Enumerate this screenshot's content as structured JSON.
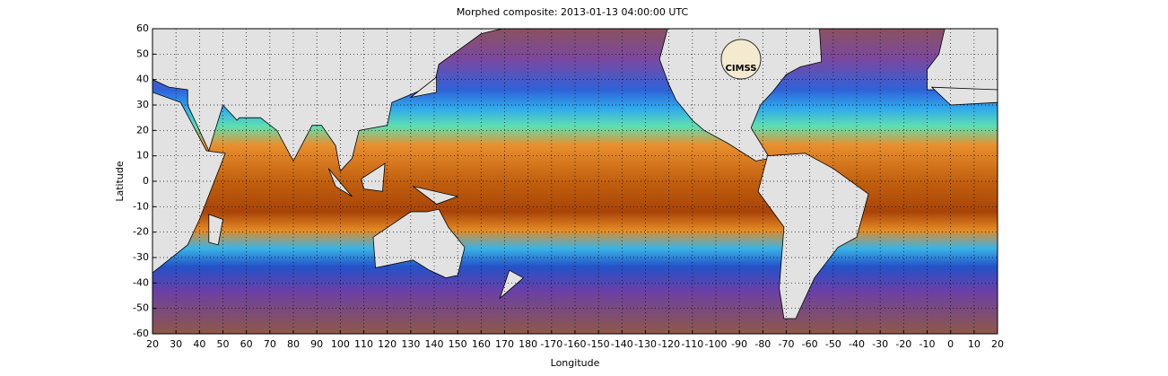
{
  "chart_data": {
    "type": "map",
    "title": "Morphed composite: 2013-01-13 04:00:00 UTC",
    "x_label": "Longitude",
    "y_label": "Latitude",
    "logo": "CIMSS",
    "xlim": [
      20,
      380
    ],
    "ylim": [
      -60,
      60
    ],
    "xticks": [
      20,
      30,
      40,
      50,
      60,
      70,
      80,
      90,
      100,
      110,
      120,
      130,
      140,
      150,
      160,
      170,
      180,
      {
        "value": 190,
        "label": "-170"
      },
      {
        "value": 200,
        "label": "-160"
      },
      {
        "value": 210,
        "label": "-150"
      },
      {
        "value": 220,
        "label": "-140"
      },
      {
        "value": 230,
        "label": "-130"
      },
      {
        "value": 240,
        "label": "-120"
      },
      {
        "value": 250,
        "label": "-110"
      },
      {
        "value": 260,
        "label": "-100"
      },
      {
        "value": 270,
        "label": "-90"
      },
      {
        "value": 280,
        "label": "-80"
      },
      {
        "value": 290,
        "label": "-70"
      },
      {
        "value": 300,
        "label": "-60"
      },
      {
        "value": 310,
        "label": "-50"
      },
      {
        "value": 320,
        "label": "-40"
      },
      {
        "value": 330,
        "label": "-30"
      },
      {
        "value": 340,
        "label": "-20"
      },
      {
        "value": 350,
        "label": "-10"
      },
      {
        "value": 360,
        "label": "0"
      },
      {
        "value": 370,
        "label": "10"
      },
      {
        "value": 380,
        "label": "20"
      }
    ],
    "yticks": [
      60,
      50,
      40,
      30,
      20,
      10,
      0,
      -10,
      -20,
      -30,
      -40,
      -50,
      -60
    ],
    "grid": true
  }
}
